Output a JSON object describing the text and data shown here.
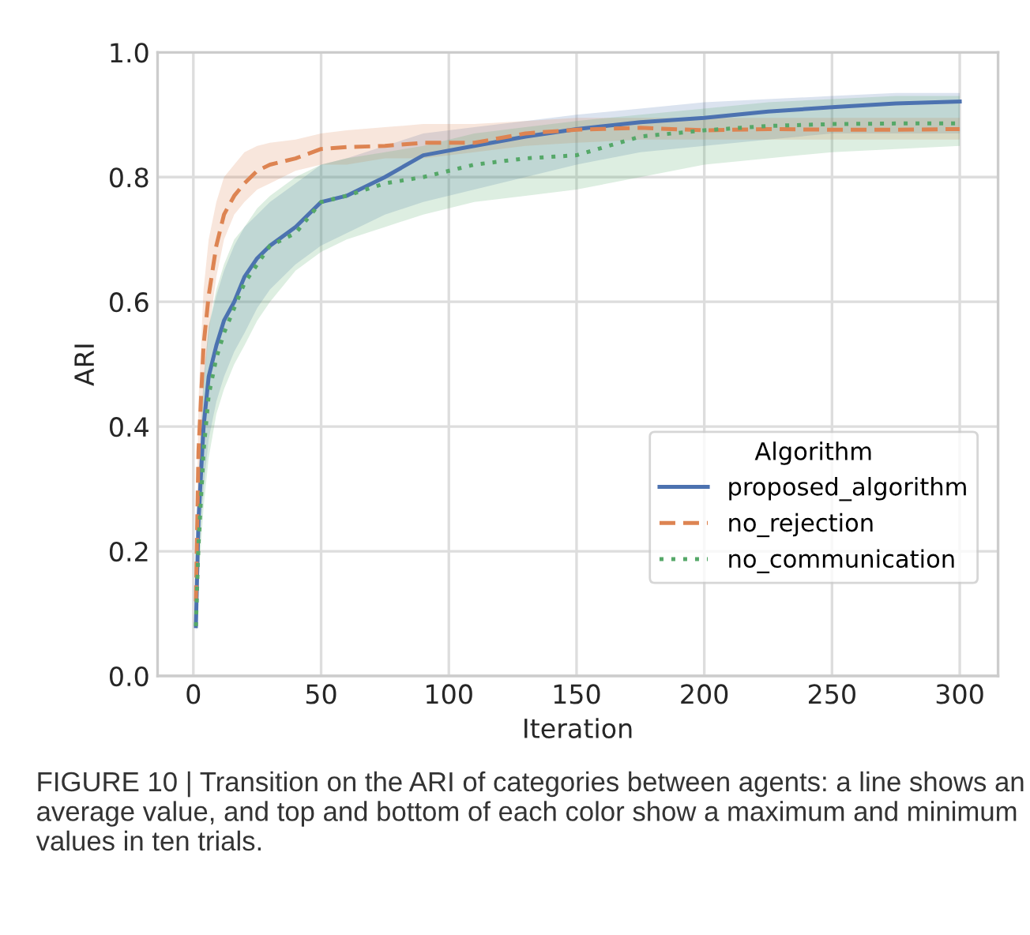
{
  "chart_data": {
    "type": "line",
    "xlabel": "Iteration",
    "ylabel": "ARI",
    "legend_title": "Algorithm",
    "legend": "lower right",
    "grid": true,
    "x": [
      1,
      2,
      4,
      6,
      9,
      12,
      16,
      20,
      25,
      30,
      40,
      50,
      60,
      75,
      90,
      110,
      130,
      150,
      175,
      200,
      225,
      250,
      275,
      300
    ],
    "xlim": [
      -14,
      315
    ],
    "xticks": [
      0,
      50,
      100,
      150,
      200,
      250,
      300
    ],
    "ylim": [
      0,
      1.0
    ],
    "yticks": [
      {
        "value": 0,
        "label": "0.0"
      },
      {
        "value": 0.2,
        "label": "0.2"
      },
      {
        "value": 0.4,
        "label": "0.4"
      },
      {
        "value": 0.6,
        "label": "0.6"
      },
      {
        "value": 0.8,
        "label": "0.8"
      },
      {
        "value": 1.0,
        "label": "1.0"
      }
    ],
    "series": [
      {
        "name": "proposed_algorithm",
        "color": "#4c72b0",
        "line_style": "solid",
        "values": [
          0.08,
          0.25,
          0.4,
          0.48,
          0.53,
          0.57,
          0.6,
          0.64,
          0.67,
          0.69,
          0.72,
          0.76,
          0.77,
          0.8,
          0.835,
          0.85,
          0.865,
          0.877,
          0.888,
          0.895,
          0.905,
          0.912,
          0.918,
          0.921
        ],
        "lower": [
          0.07,
          0.18,
          0.3,
          0.38,
          0.44,
          0.48,
          0.52,
          0.55,
          0.59,
          0.62,
          0.66,
          0.69,
          0.71,
          0.74,
          0.76,
          0.78,
          0.8,
          0.82,
          0.84,
          0.85,
          0.86,
          0.87,
          0.87,
          0.87
        ],
        "upper": [
          0.1,
          0.32,
          0.48,
          0.56,
          0.61,
          0.65,
          0.69,
          0.72,
          0.74,
          0.76,
          0.79,
          0.82,
          0.83,
          0.85,
          0.87,
          0.88,
          0.89,
          0.9,
          0.91,
          0.92,
          0.925,
          0.93,
          0.935,
          0.935
        ]
      },
      {
        "name": "no_rejection",
        "color": "#dd8452",
        "line_style": "dashed",
        "values": [
          0.12,
          0.36,
          0.53,
          0.61,
          0.69,
          0.74,
          0.77,
          0.79,
          0.81,
          0.82,
          0.83,
          0.845,
          0.848,
          0.85,
          0.855,
          0.855,
          0.87,
          0.876,
          0.879,
          0.875,
          0.877,
          0.876,
          0.876,
          0.877
        ],
        "lower": [
          0.1,
          0.28,
          0.46,
          0.55,
          0.64,
          0.7,
          0.74,
          0.76,
          0.78,
          0.79,
          0.81,
          0.82,
          0.82,
          0.83,
          0.83,
          0.84,
          0.85,
          0.855,
          0.86,
          0.86,
          0.86,
          0.86,
          0.86,
          0.86
        ],
        "upper": [
          0.14,
          0.44,
          0.62,
          0.7,
          0.76,
          0.8,
          0.82,
          0.84,
          0.85,
          0.855,
          0.86,
          0.87,
          0.875,
          0.88,
          0.885,
          0.885,
          0.89,
          0.895,
          0.895,
          0.895,
          0.895,
          0.895,
          0.895,
          0.895
        ]
      },
      {
        "name": "no_communication",
        "color": "#55a868",
        "line_style": "dotted",
        "values": [
          0.08,
          0.21,
          0.36,
          0.45,
          0.51,
          0.55,
          0.59,
          0.63,
          0.66,
          0.69,
          0.71,
          0.76,
          0.77,
          0.79,
          0.8,
          0.82,
          0.83,
          0.835,
          0.865,
          0.875,
          0.882,
          0.885,
          0.886,
          0.886
        ],
        "lower": [
          0.07,
          0.15,
          0.27,
          0.35,
          0.42,
          0.46,
          0.5,
          0.53,
          0.57,
          0.6,
          0.65,
          0.68,
          0.7,
          0.72,
          0.74,
          0.76,
          0.77,
          0.78,
          0.8,
          0.82,
          0.83,
          0.84,
          0.845,
          0.85
        ],
        "upper": [
          0.1,
          0.3,
          0.47,
          0.56,
          0.62,
          0.66,
          0.7,
          0.72,
          0.75,
          0.77,
          0.8,
          0.82,
          0.83,
          0.84,
          0.85,
          0.87,
          0.88,
          0.89,
          0.9,
          0.91,
          0.92,
          0.925,
          0.93,
          0.93
        ]
      }
    ],
    "annotations": [
      "FIGURE 10 | Transition on the ARI of categories between agents: a line shows an average value, and top and bottom of each color show a maximum and minimum values in ten trials."
    ]
  }
}
